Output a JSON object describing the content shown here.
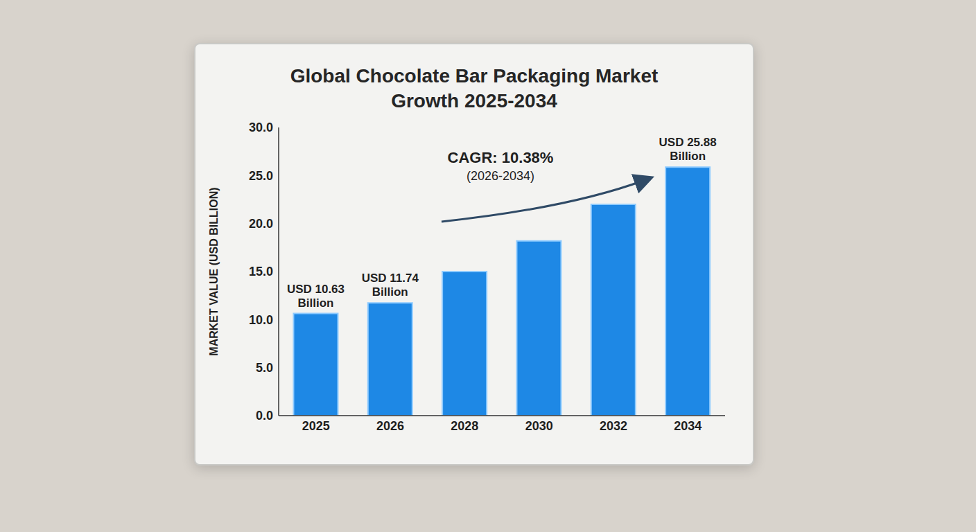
{
  "chart_data": {
    "type": "bar",
    "title": "Global Chocolate Bar Packaging Market Growth 2025-2034",
    "categories": [
      "2025",
      "2026",
      "2028",
      "2030",
      "2032",
      "2034"
    ],
    "values": [
      10.63,
      11.74,
      15.0,
      18.2,
      22.0,
      25.88
    ],
    "value_labels": [
      "USD 10.63 Billion",
      "USD 11.74 Billion",
      null,
      null,
      null,
      "USD 25.88 Billion"
    ],
    "data_labels": true,
    "color": "#1e88e5",
    "y_label": "MARKET VALUE (USD BILLION)",
    "ylim": [
      0,
      30
    ],
    "yticks": [
      {
        "value": 0,
        "label": "0.0"
      },
      {
        "value": 5,
        "label": "5.0"
      },
      {
        "value": 10,
        "label": "10.0"
      },
      {
        "value": 15,
        "label": "15.0"
      },
      {
        "value": 20,
        "label": "20.0"
      },
      {
        "value": 25,
        "label": "25.0"
      },
      {
        "value": 30,
        "label": "30.0"
      }
    ],
    "grid": false,
    "annotations": [
      "CAGR: 10.38%",
      "(2026-2034)"
    ]
  }
}
